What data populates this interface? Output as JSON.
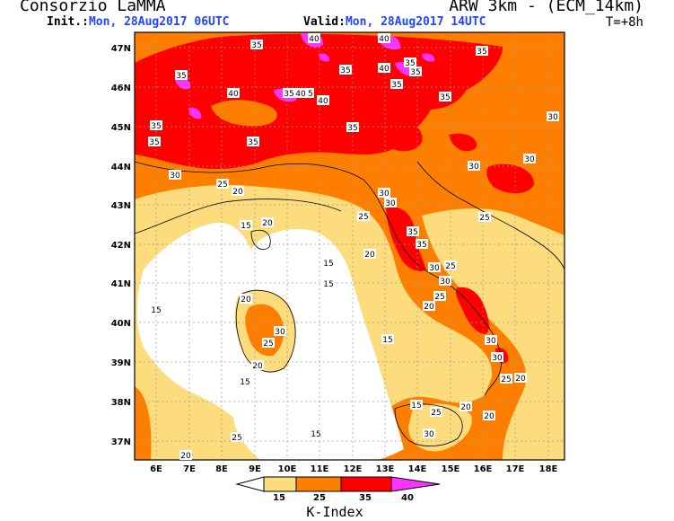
{
  "header": {
    "organization": "Consorzio LaMMA",
    "model": "ARW 3km - (ECM_14km)",
    "init_label": "Init.:",
    "init_value": "Mon, 28Aug2017 06UTC",
    "valid_label": "Valid:",
    "valid_value": "Mon, 28Aug2017 14UTC",
    "forecast_step": "T=+8h"
  },
  "map": {
    "lat_ticks": [
      "47N",
      "46N",
      "45N",
      "44N",
      "43N",
      "42N",
      "41N",
      "40N",
      "39N",
      "38N",
      "37N"
    ],
    "lon_ticks": [
      "6E",
      "7E",
      "8E",
      "9E",
      "10E",
      "11E",
      "12E",
      "13E",
      "14E",
      "15E",
      "16E",
      "17E",
      "18E"
    ],
    "contour_labels": [
      {
        "text": "40"
      },
      {
        "text": "40"
      },
      {
        "text": "35"
      },
      {
        "text": "35"
      },
      {
        "text": "35"
      },
      {
        "text": "40"
      },
      {
        "text": "35"
      },
      {
        "text": "35"
      },
      {
        "text": "35"
      },
      {
        "text": "40"
      },
      {
        "text": "40"
      },
      {
        "text": "35"
      },
      {
        "text": "35"
      },
      {
        "text": "40"
      },
      {
        "text": "35"
      },
      {
        "text": "35"
      },
      {
        "text": "35"
      },
      {
        "text": "35"
      },
      {
        "text": "35"
      },
      {
        "text": "35"
      },
      {
        "text": "30"
      },
      {
        "text": "30"
      },
      {
        "text": "30"
      },
      {
        "text": "30"
      },
      {
        "text": "25"
      },
      {
        "text": "20"
      },
      {
        "text": "30"
      },
      {
        "text": "30"
      },
      {
        "text": "25"
      },
      {
        "text": "25"
      },
      {
        "text": "35"
      },
      {
        "text": "35"
      },
      {
        "text": "30"
      },
      {
        "text": "25"
      },
      {
        "text": "15"
      },
      {
        "text": "20"
      },
      {
        "text": "15"
      },
      {
        "text": "20"
      },
      {
        "text": "30"
      },
      {
        "text": "25"
      },
      {
        "text": "20"
      },
      {
        "text": "15"
      },
      {
        "text": "15"
      },
      {
        "text": "20"
      },
      {
        "text": "30"
      },
      {
        "text": "25"
      },
      {
        "text": "20"
      },
      {
        "text": "15"
      },
      {
        "text": "30"
      },
      {
        "text": "25"
      },
      {
        "text": "20"
      },
      {
        "text": "30"
      },
      {
        "text": "25"
      },
      {
        "text": "20"
      },
      {
        "text": "15"
      },
      {
        "text": "25"
      },
      {
        "text": "20"
      },
      {
        "text": "30"
      },
      {
        "text": "15"
      },
      {
        "text": "20"
      },
      {
        "text": "15"
      }
    ]
  },
  "colorbar": {
    "ticks": [
      "15",
      "25",
      "35",
      "40"
    ],
    "title": "K-Index",
    "colors": [
      "#ffffff",
      "#fcdc7c",
      "#fe7f00",
      "#fe0000",
      "#ff33ff"
    ]
  },
  "legend_colors": {
    "below15": "#ffffff",
    "k15_25": "#fcdc7c",
    "k25_35": "#fe7f00",
    "k35_40": "#fe0000",
    "above40": "#ff33ff"
  }
}
